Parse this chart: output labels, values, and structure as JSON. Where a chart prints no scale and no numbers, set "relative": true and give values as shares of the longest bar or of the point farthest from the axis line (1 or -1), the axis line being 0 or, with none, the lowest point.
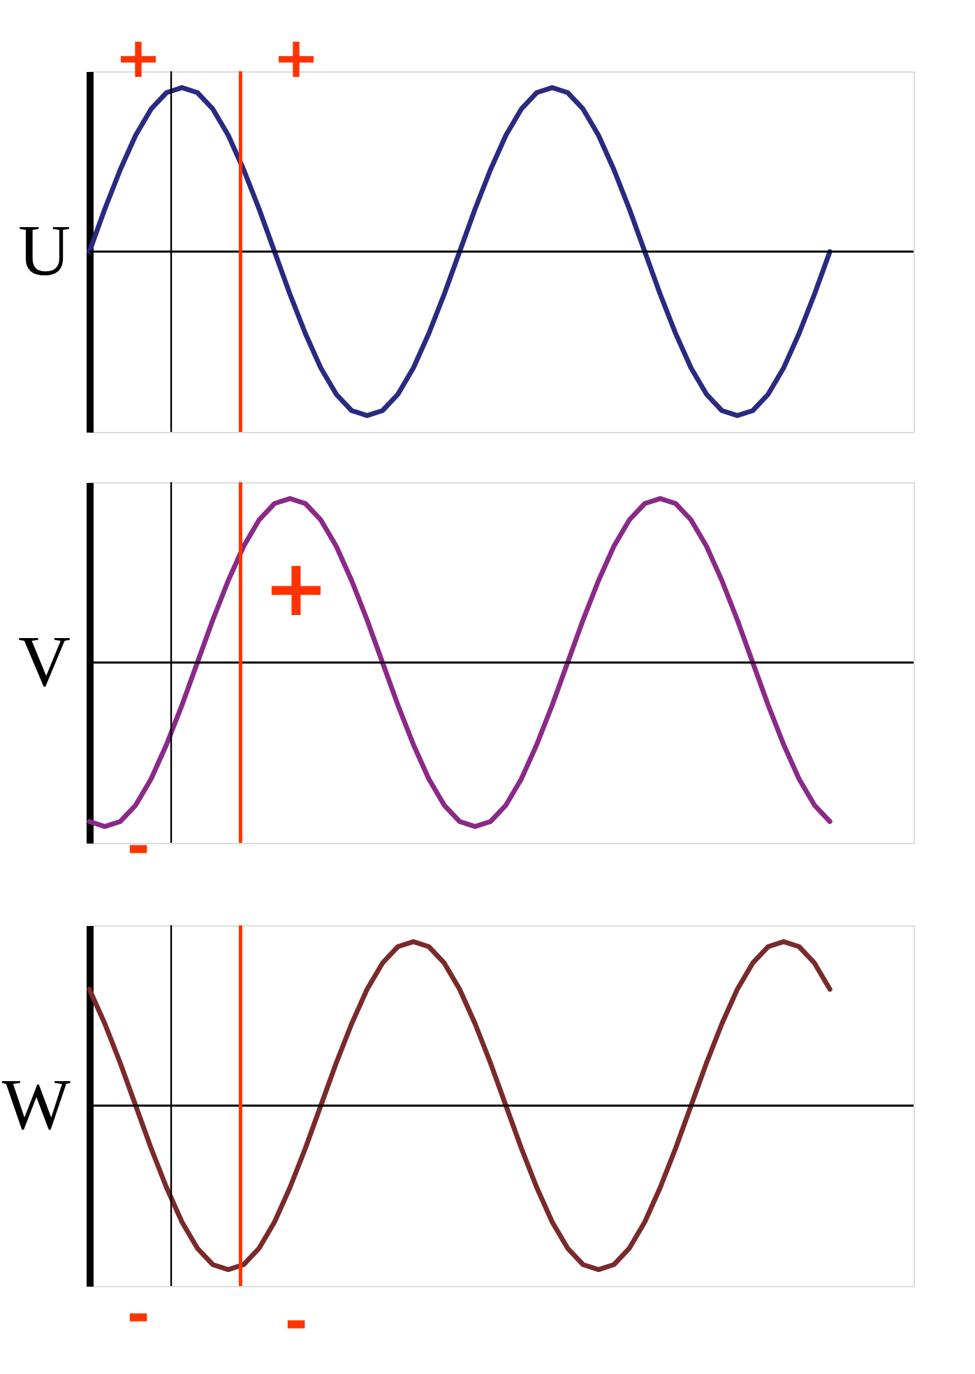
{
  "chart_data": [
    {
      "type": "line",
      "relative": true,
      "ylabel": "U",
      "tick_labels": false,
      "categories": [
        null,
        null,
        null,
        null,
        null,
        null,
        null,
        null,
        null,
        null,
        null,
        null,
        null,
        null,
        null,
        null,
        null,
        null,
        null,
        null,
        null,
        null,
        null,
        null,
        null,
        null,
        null,
        null,
        null,
        null,
        null,
        null,
        null,
        null,
        null,
        null,
        null,
        null,
        null,
        null,
        null,
        null,
        null,
        null,
        null,
        null,
        null,
        null,
        null
      ],
      "series": [
        {
          "color": "#2a2a80",
          "values": [
            0,
            0.26,
            0.5,
            0.71,
            0.87,
            0.97,
            1,
            0.97,
            0.87,
            0.71,
            0.5,
            0.26,
            0,
            -0.26,
            -0.5,
            -0.71,
            -0.87,
            -0.97,
            -1,
            -0.97,
            -0.87,
            -0.71,
            -0.5,
            -0.26,
            0,
            0.26,
            0.5,
            0.71,
            0.87,
            0.97,
            1,
            0.97,
            0.87,
            0.71,
            0.5,
            0.26,
            0,
            -0.26,
            -0.5,
            -0.71,
            -0.87,
            -0.97,
            -1,
            -0.97,
            -0.87,
            -0.71,
            -0.5,
            -0.26,
            0
          ]
        }
      ],
      "annotations": [
        "+",
        "+"
      ]
    },
    {
      "type": "line",
      "relative": true,
      "ylabel": "V",
      "tick_labels": false,
      "categories": [
        null,
        null,
        null,
        null,
        null,
        null,
        null,
        null,
        null,
        null,
        null,
        null,
        null,
        null,
        null,
        null,
        null,
        null,
        null,
        null,
        null,
        null,
        null,
        null,
        null,
        null,
        null,
        null,
        null,
        null,
        null,
        null,
        null,
        null,
        null,
        null,
        null,
        null,
        null,
        null,
        null,
        null,
        null,
        null,
        null,
        null,
        null,
        null,
        null
      ],
      "series": [
        {
          "color": "#8a2a88",
          "values": [
            -0.97,
            -1,
            -0.97,
            -0.87,
            -0.71,
            -0.5,
            -0.26,
            0,
            0.26,
            0.5,
            0.71,
            0.87,
            0.97,
            1,
            0.97,
            0.87,
            0.71,
            0.5,
            0.26,
            0,
            -0.26,
            -0.5,
            -0.71,
            -0.87,
            -0.97,
            -1,
            -0.97,
            -0.87,
            -0.71,
            -0.5,
            -0.26,
            0,
            0.26,
            0.5,
            0.71,
            0.87,
            0.97,
            1,
            0.97,
            0.87,
            0.71,
            0.5,
            0.26,
            0,
            -0.26,
            -0.5,
            -0.71,
            -0.87,
            -0.97
          ]
        }
      ],
      "annotations": [
        "+",
        "-"
      ]
    },
    {
      "type": "line",
      "relative": true,
      "ylabel": "W",
      "tick_labels": false,
      "categories": [
        null,
        null,
        null,
        null,
        null,
        null,
        null,
        null,
        null,
        null,
        null,
        null,
        null,
        null,
        null,
        null,
        null,
        null,
        null,
        null,
        null,
        null,
        null,
        null,
        null,
        null,
        null,
        null,
        null,
        null,
        null,
        null,
        null,
        null,
        null,
        null,
        null,
        null,
        null,
        null,
        null,
        null,
        null,
        null,
        null,
        null,
        null,
        null,
        null
      ],
      "series": [
        {
          "color": "#7a2a2a",
          "values": [
            0.71,
            0.5,
            0.26,
            0,
            -0.26,
            -0.5,
            -0.71,
            -0.87,
            -0.97,
            -1,
            -0.97,
            -0.87,
            -0.71,
            -0.5,
            -0.26,
            0,
            0.26,
            0.5,
            0.71,
            0.87,
            0.97,
            1,
            0.97,
            0.87,
            0.71,
            0.5,
            0.26,
            0,
            -0.26,
            -0.5,
            -0.71,
            -0.87,
            -0.97,
            -1,
            -0.97,
            -0.87,
            -0.71,
            -0.5,
            -0.26,
            0,
            0.26,
            0.5,
            0.71,
            0.87,
            0.97,
            1,
            0.97,
            0.87,
            0.71
          ]
        }
      ],
      "annotations": [
        "-",
        "-"
      ]
    }
  ]
}
